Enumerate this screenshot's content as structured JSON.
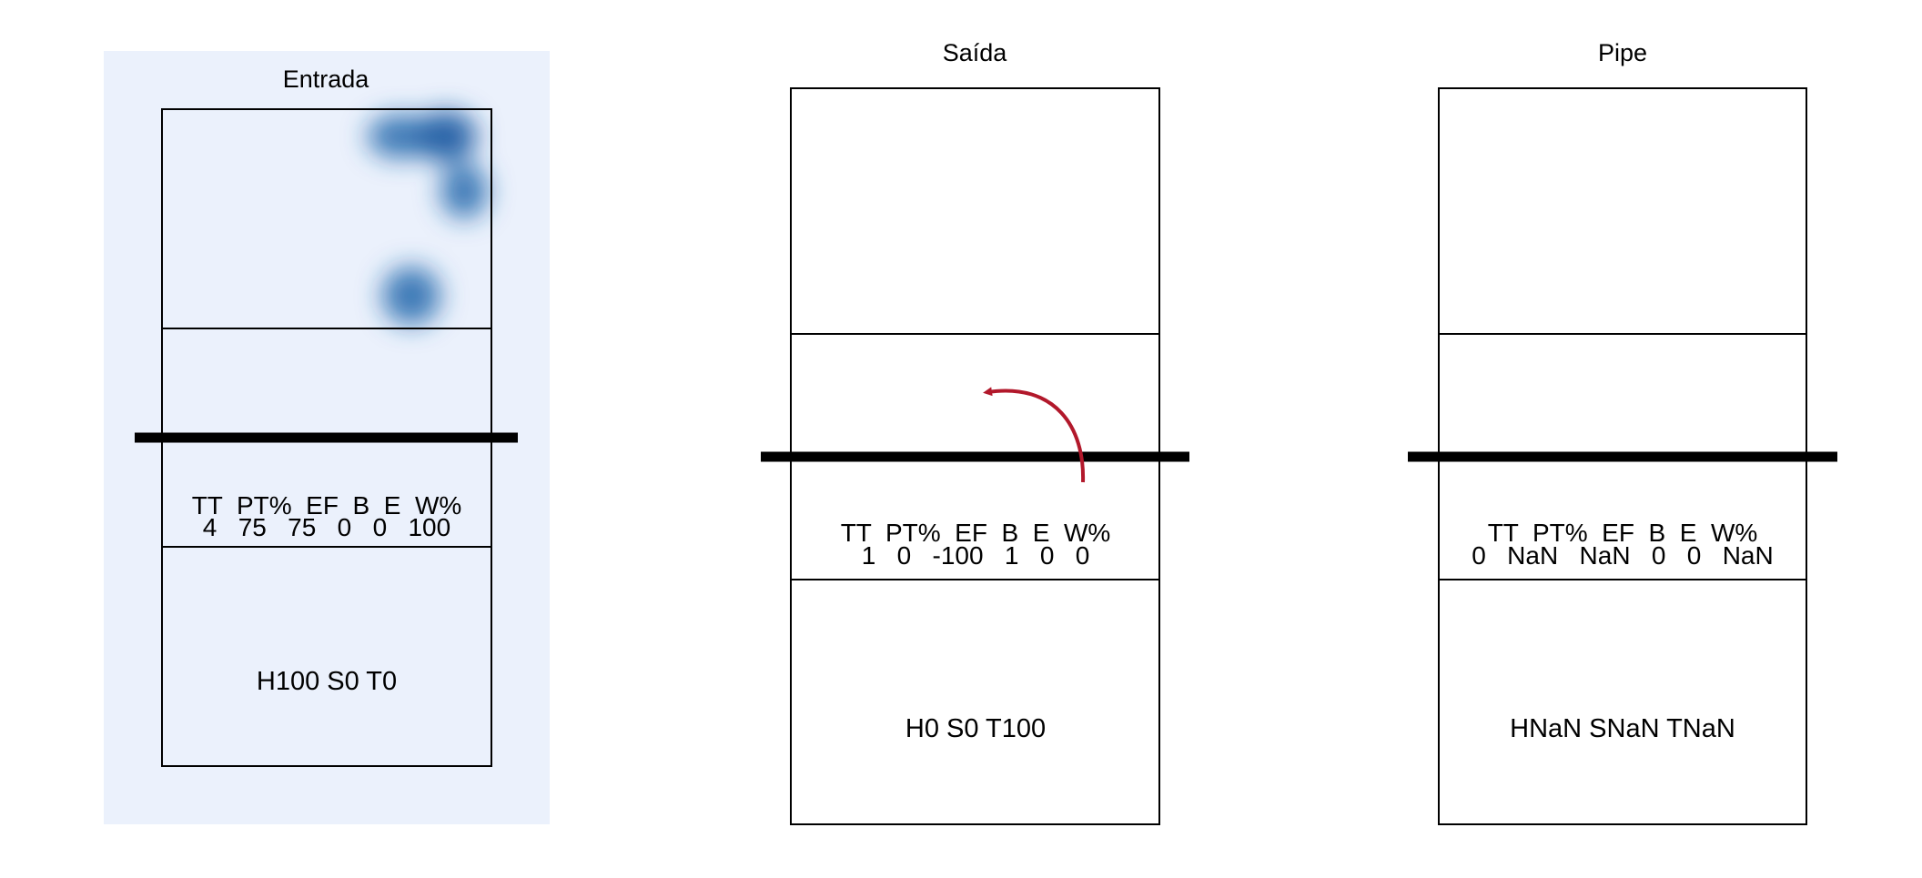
{
  "panels": [
    {
      "title": "Entrada",
      "stats_header": "TT  PT%  EF  B  E  W%",
      "stats_values": "4   75   75   0   0   100",
      "stats_labels": [
        "TT",
        "PT%",
        "EF",
        "B",
        "E",
        "W%"
      ],
      "stats": [
        "4",
        "75",
        "75",
        "0",
        "0",
        "100"
      ],
      "footer": "H100 S0 T0",
      "heatmap": true,
      "heatmap_color": "#2166ac",
      "background_color": "#ebf1fc"
    },
    {
      "title": "Saída",
      "stats_header": "TT  PT%  EF  B  E  W%",
      "stats_values": "1   0   -100   1   0   0",
      "stats_labels": [
        "TT",
        "PT%",
        "EF",
        "B",
        "E",
        "W%"
      ],
      "stats": [
        "1",
        "0",
        "-100",
        "1",
        "0",
        "0"
      ],
      "footer": "H0 S0 T100",
      "heatmap": false,
      "arrow": true,
      "arrow_color": "#b2182b"
    },
    {
      "title": "Pipe",
      "stats_header": "TT  PT%  EF  B  E  W%",
      "stats_values": "0   NaN   NaN   0   0   NaN",
      "stats_labels": [
        "TT",
        "PT%",
        "EF",
        "B",
        "E",
        "W%"
      ],
      "stats": [
        "0",
        "NaN",
        "NaN",
        "0",
        "0",
        "NaN"
      ],
      "footer": "HNaN SNaN TNaN",
      "heatmap": false
    }
  ]
}
